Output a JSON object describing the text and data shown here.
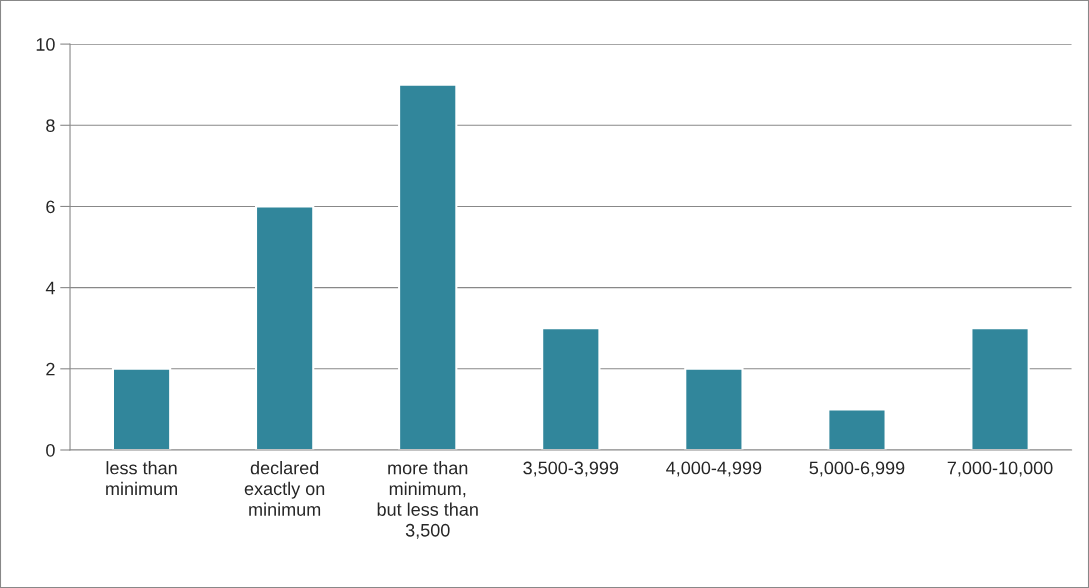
{
  "chart_data": {
    "type": "bar",
    "categories": [
      "less than\nminimum",
      "declared\nexactly on\nminimum",
      "more than\nminimum,\nbut less than\n3,500",
      "3,500-3,999",
      "4,000-4,999",
      "5,000-6,999",
      "7,000-10,000"
    ],
    "values": [
      2,
      6,
      9,
      3,
      2,
      1,
      3
    ],
    "color": "#31869b",
    "ylim": [
      0,
      10
    ],
    "yticks": [
      0,
      2,
      4,
      6,
      8,
      10
    ],
    "grid": "y",
    "legend": false
  }
}
